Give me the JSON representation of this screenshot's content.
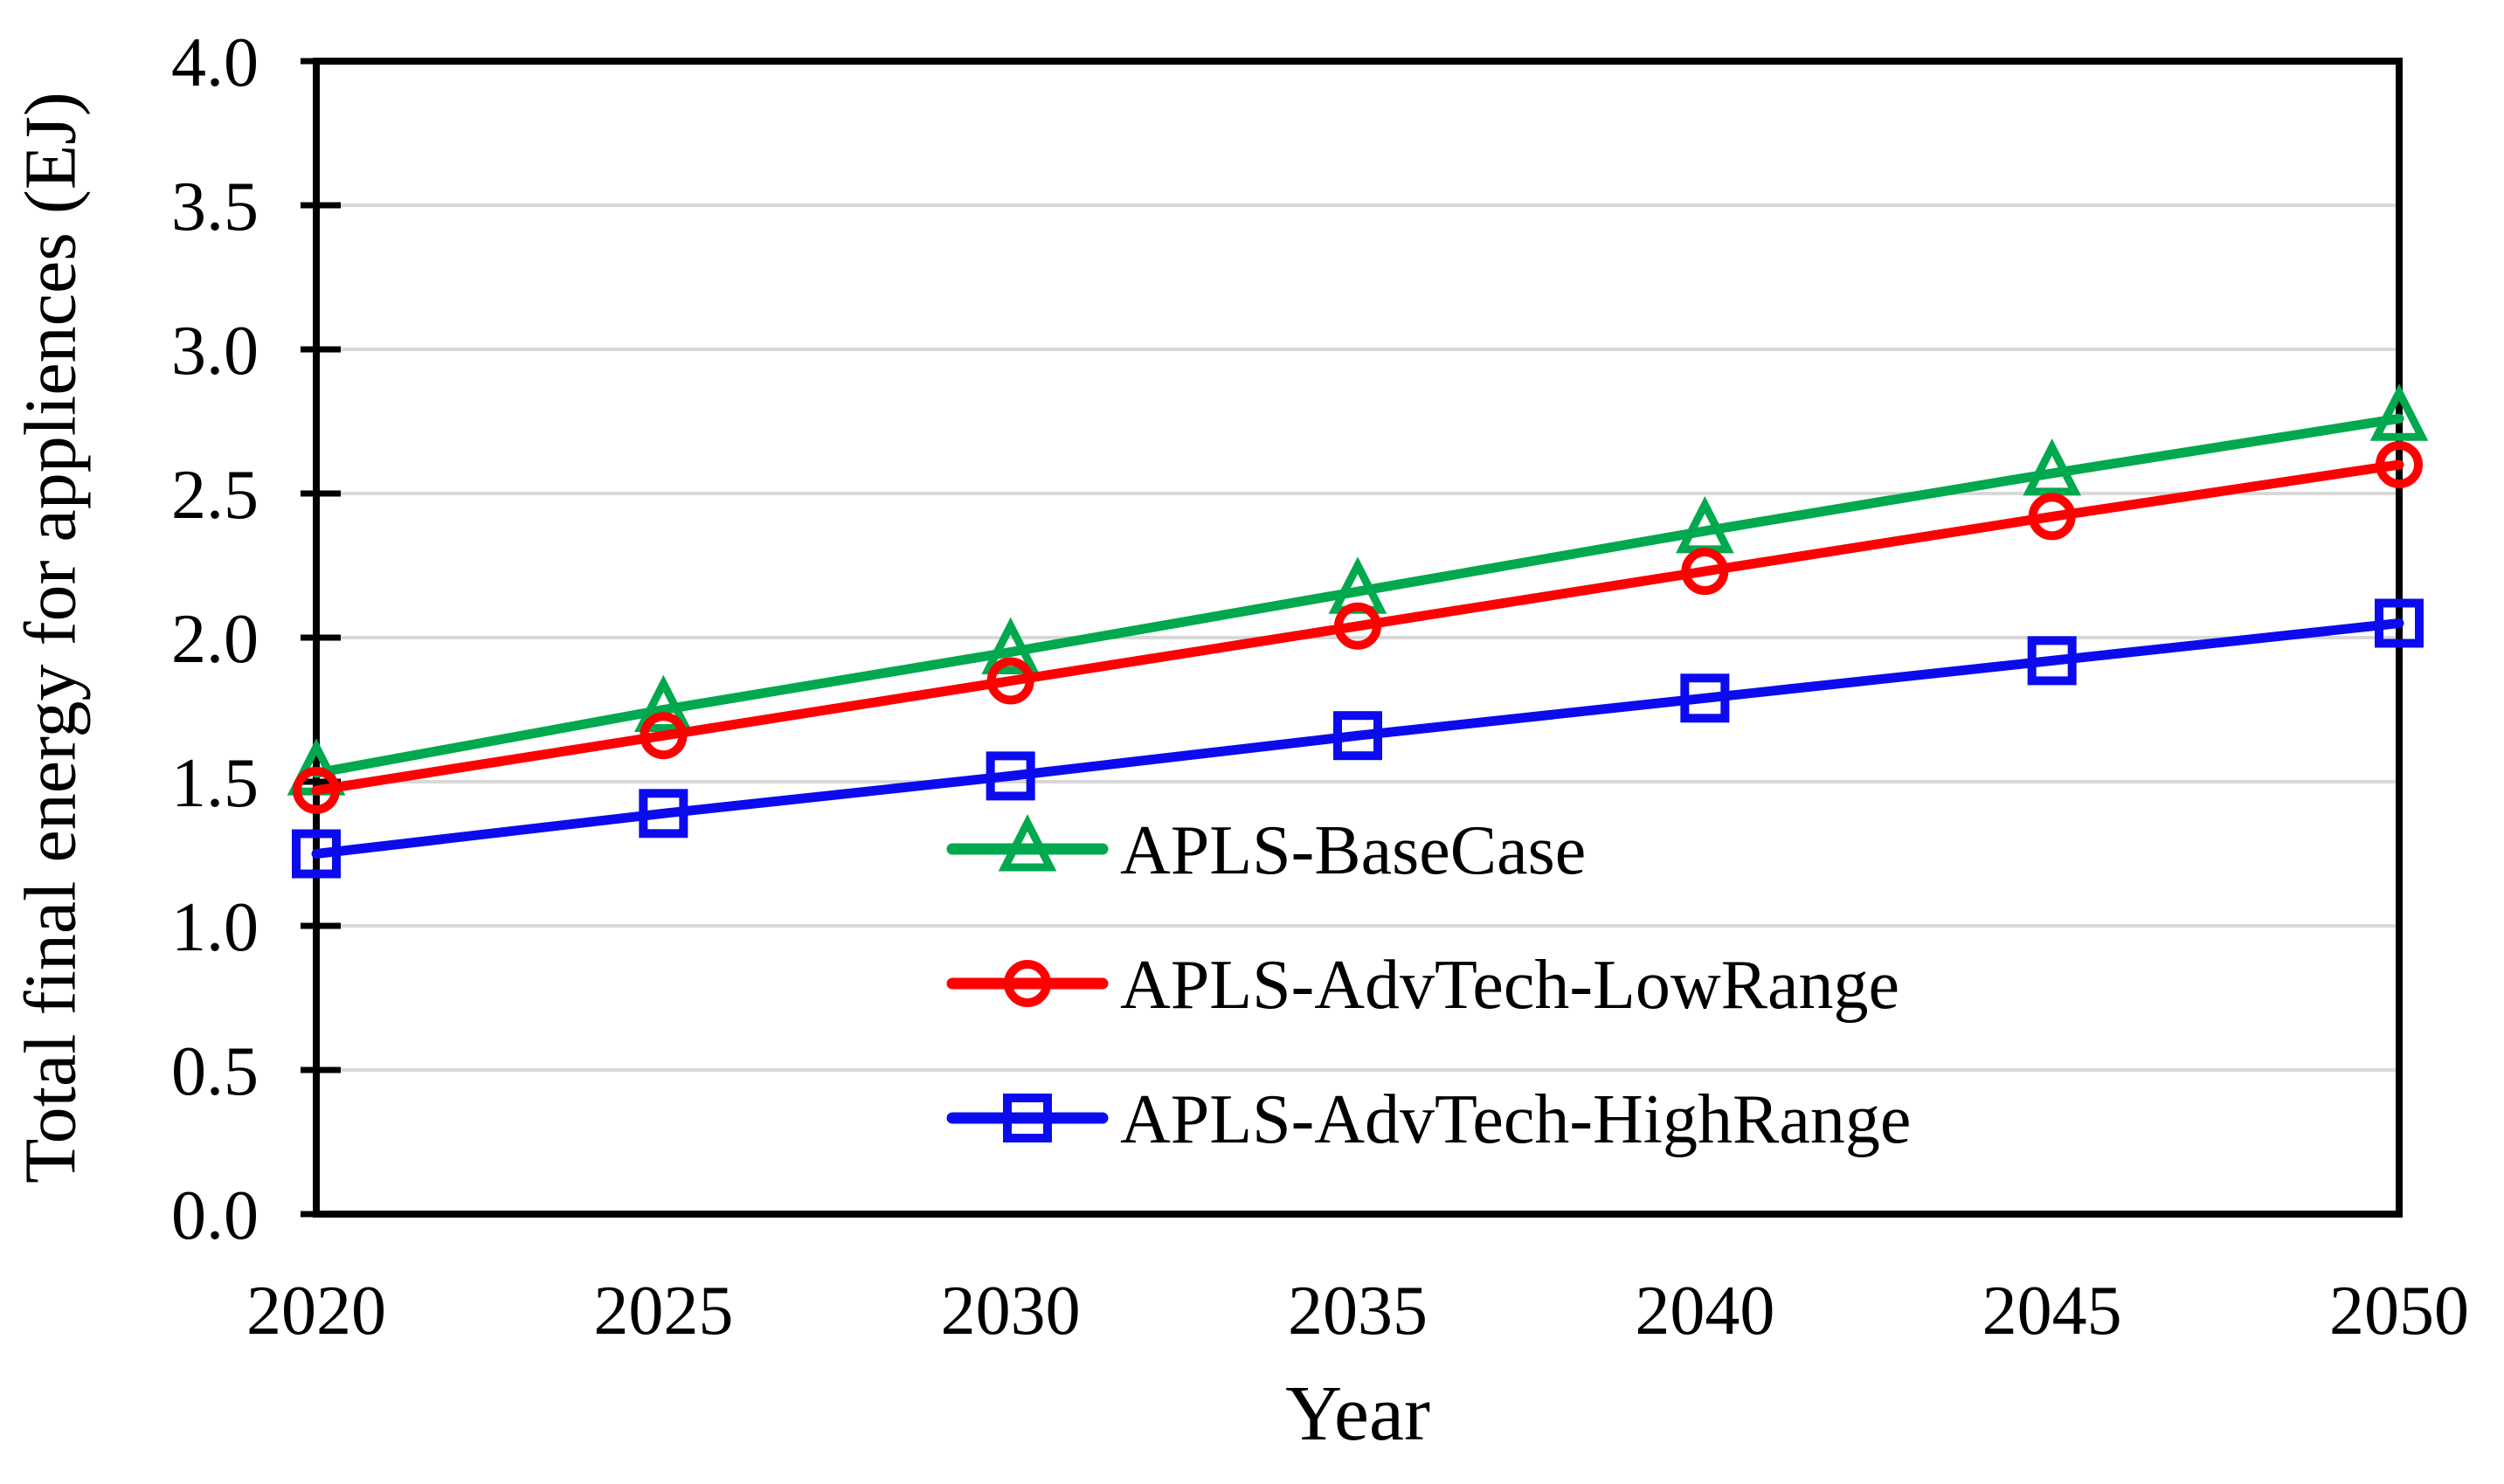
{
  "figure": {
    "background": "#ffffff",
    "axis_color": "#000000",
    "grid_color": "#d8d8d8",
    "text_color": "#000000"
  },
  "chart_data": {
    "type": "line",
    "xlabel": "Year",
    "ylabel": "Total final energy for appliences (EJ)",
    "x": [
      2020,
      2025,
      2030,
      2035,
      2040,
      2045,
      2050
    ],
    "x_tick_labels": [
      "2020",
      "2025",
      "2030",
      "2035",
      "2040",
      "2045",
      "2050"
    ],
    "y_tick_labels": [
      "4.0",
      "3.5",
      "3.0",
      "2.5",
      "2.0",
      "1.5",
      "1.0",
      "0.5",
      "0.0"
    ],
    "ylim": [
      0.0,
      4.0
    ],
    "y_tick_step": 0.5,
    "grid": "horizontal-only",
    "legend_position": "inside-lower-right",
    "series": [
      {
        "name": "APLS-BaseCase",
        "color": "#00a84e",
        "marker": "triangle",
        "values": [
          1.53,
          1.75,
          1.95,
          2.16,
          2.37,
          2.57,
          2.76
        ]
      },
      {
        "name": "APLS-AdvTech-LowRange",
        "color": "#fe0000",
        "marker": "circle",
        "values": [
          1.47,
          1.66,
          1.85,
          2.04,
          2.23,
          2.42,
          2.6
        ]
      },
      {
        "name": "APLS-AdvTech-HighRange",
        "color": "#0b0bee",
        "marker": "square",
        "values": [
          1.25,
          1.39,
          1.52,
          1.66,
          1.79,
          1.92,
          2.05
        ]
      }
    ]
  }
}
